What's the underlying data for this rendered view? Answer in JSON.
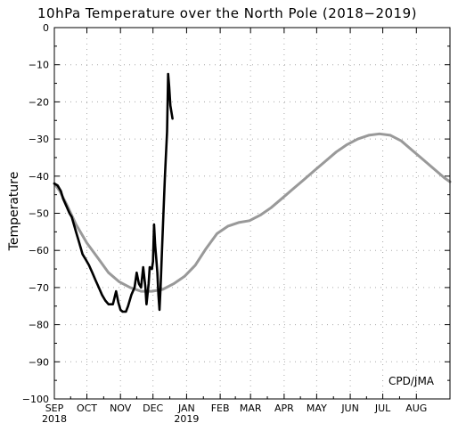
{
  "chart_data": {
    "type": "line",
    "title": "10hPa Temperature over the North Pole (2018−2019)",
    "ylabel": "Temperature",
    "xlabel": "",
    "ylim": [
      -100,
      0
    ],
    "y_ticks": [
      0,
      -10,
      -20,
      -30,
      -40,
      -50,
      -60,
      -70,
      -80,
      -90,
      -100
    ],
    "x_domain_days": 365,
    "x_ticks": [
      {
        "label": "SEP",
        "day": 0,
        "year": "2018"
      },
      {
        "label": "OCT",
        "day": 30
      },
      {
        "label": "NOV",
        "day": 61
      },
      {
        "label": "DEC",
        "day": 91
      },
      {
        "label": "JAN",
        "day": 122,
        "year": "2019"
      },
      {
        "label": "FEB",
        "day": 153
      },
      {
        "label": "MAR",
        "day": 181
      },
      {
        "label": "APR",
        "day": 212
      },
      {
        "label": "MAY",
        "day": 242
      },
      {
        "label": "JUN",
        "day": 273
      },
      {
        "label": "JUL",
        "day": 303
      },
      {
        "label": "AUG",
        "day": 334
      }
    ],
    "grid": "dotted",
    "annotation": "CPD/JMA",
    "series": [
      {
        "color": "#999999",
        "points": [
          [
            0,
            -42
          ],
          [
            5,
            -44
          ],
          [
            12,
            -48
          ],
          [
            20,
            -53
          ],
          [
            30,
            -58
          ],
          [
            40,
            -62
          ],
          [
            50,
            -66
          ],
          [
            60,
            -68.5
          ],
          [
            70,
            -70
          ],
          [
            80,
            -71
          ],
          [
            90,
            -71
          ],
          [
            100,
            -70.5
          ],
          [
            110,
            -69
          ],
          [
            120,
            -67
          ],
          [
            130,
            -64
          ],
          [
            140,
            -59.5
          ],
          [
            150,
            -55.5
          ],
          [
            160,
            -53.5
          ],
          [
            170,
            -52.5
          ],
          [
            180,
            -52
          ],
          [
            190,
            -50.5
          ],
          [
            200,
            -48.5
          ],
          [
            210,
            -46
          ],
          [
            220,
            -43.5
          ],
          [
            230,
            -41
          ],
          [
            240,
            -38.5
          ],
          [
            250,
            -36
          ],
          [
            260,
            -33.5
          ],
          [
            270,
            -31.5
          ],
          [
            280,
            -30
          ],
          [
            290,
            -29
          ],
          [
            300,
            -28.6
          ],
          [
            310,
            -29
          ],
          [
            320,
            -30.5
          ],
          [
            330,
            -33
          ],
          [
            340,
            -35.5
          ],
          [
            350,
            -38
          ],
          [
            360,
            -40.5
          ],
          [
            365,
            -41.5
          ]
        ]
      },
      {
        "color": "#000000",
        "points": [
          [
            0,
            -42
          ],
          [
            3,
            -42.5
          ],
          [
            6,
            -44
          ],
          [
            8,
            -46
          ],
          [
            11,
            -48
          ],
          [
            14,
            -50
          ],
          [
            16,
            -51
          ],
          [
            18,
            -53
          ],
          [
            20,
            -55
          ],
          [
            22,
            -57
          ],
          [
            24,
            -59
          ],
          [
            26,
            -61
          ],
          [
            29,
            -62.5
          ],
          [
            32,
            -64
          ],
          [
            35,
            -66
          ],
          [
            38,
            -68
          ],
          [
            41,
            -70
          ],
          [
            44,
            -72
          ],
          [
            47,
            -73.5
          ],
          [
            50,
            -74.5
          ],
          [
            54,
            -74.5
          ],
          [
            57,
            -71
          ],
          [
            59,
            -74
          ],
          [
            61,
            -76
          ],
          [
            63,
            -76.5
          ],
          [
            66,
            -76.5
          ],
          [
            68,
            -75
          ],
          [
            71,
            -72
          ],
          [
            74,
            -70
          ],
          [
            76,
            -66
          ],
          [
            78,
            -69
          ],
          [
            80,
            -70
          ],
          [
            82,
            -64.5
          ],
          [
            84,
            -70
          ],
          [
            85,
            -74.5
          ],
          [
            87,
            -69
          ],
          [
            88,
            -64.5
          ],
          [
            90,
            -65
          ],
          [
            91,
            -63
          ],
          [
            92,
            -53
          ],
          [
            93,
            -58.5
          ],
          [
            94,
            -62
          ],
          [
            95,
            -66
          ],
          [
            96,
            -72
          ],
          [
            97,
            -76
          ],
          [
            98,
            -70
          ],
          [
            100,
            -55
          ],
          [
            102,
            -40
          ],
          [
            104,
            -28
          ],
          [
            105,
            -12.5
          ],
          [
            106,
            -16
          ],
          [
            107,
            -21
          ],
          [
            109,
            -24.5
          ]
        ]
      }
    ]
  }
}
